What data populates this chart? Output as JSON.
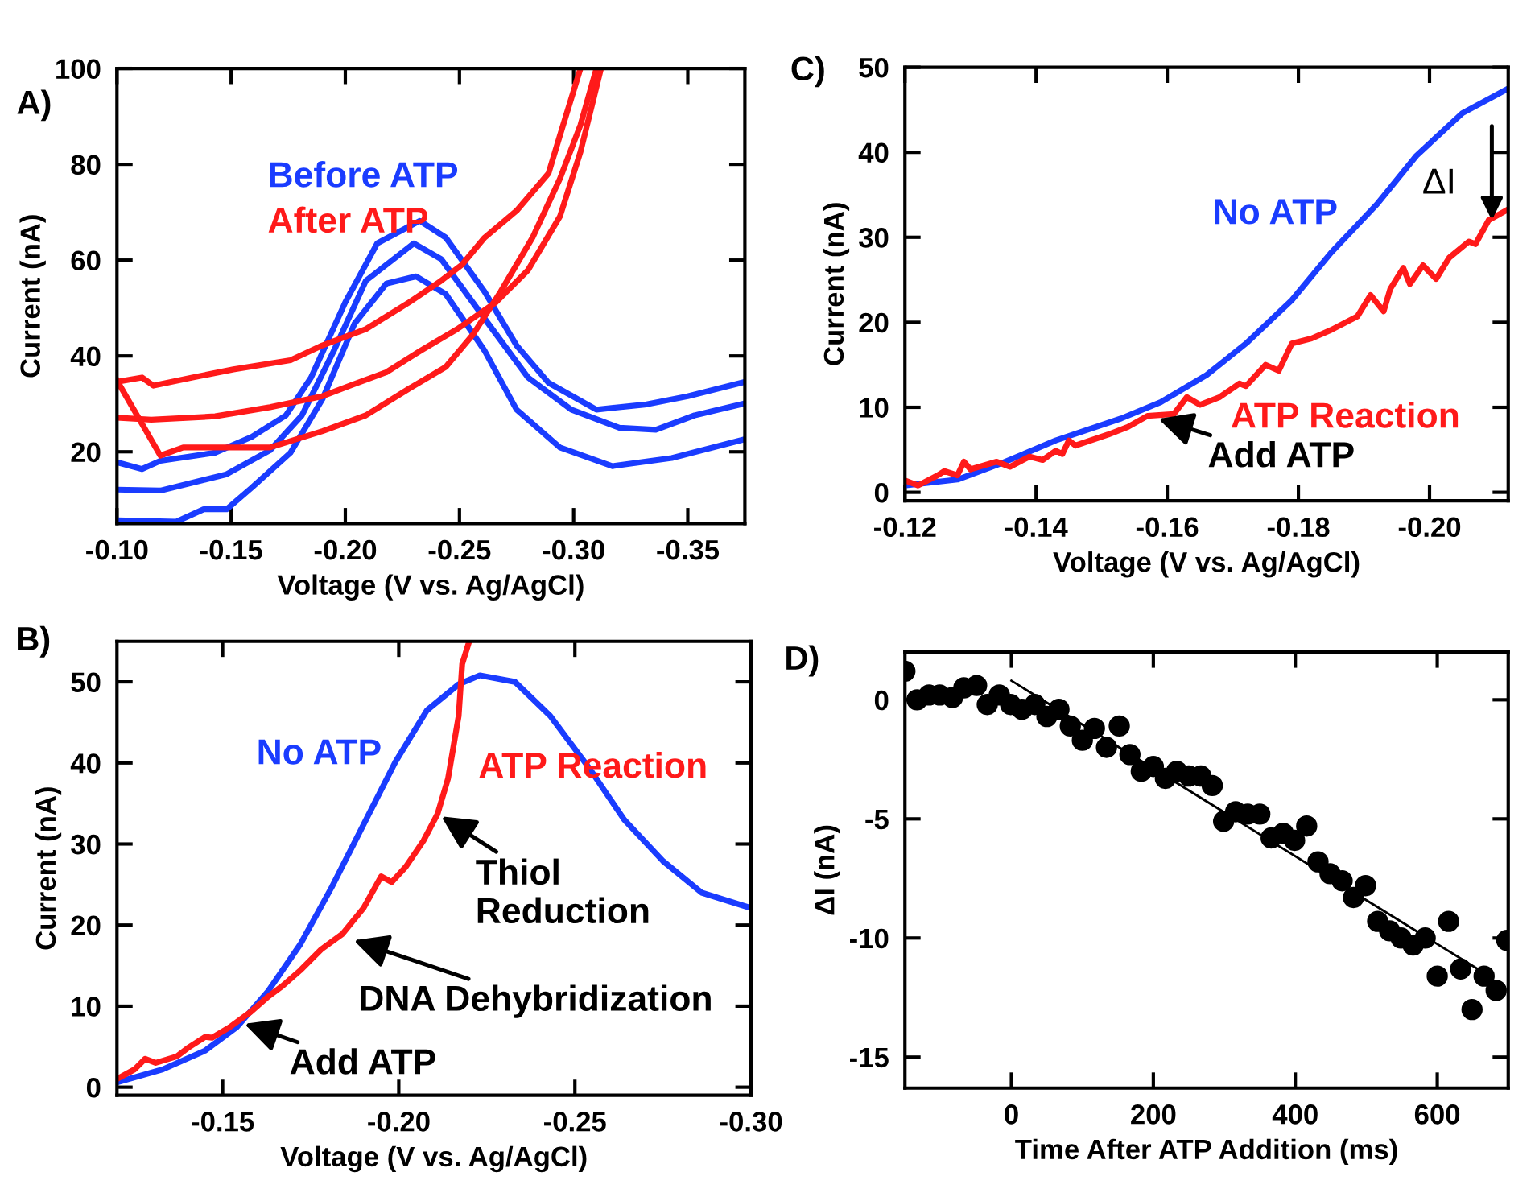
{
  "chart_data": [
    {
      "type": "line",
      "title": "A)",
      "xlabel": "Voltage (V vs. Ag/AgCl)",
      "ylabel": "Current (nA)",
      "xlim": [
        -0.1,
        -0.375
      ],
      "xticks": [
        {
          "value": -0.1,
          "label": "-0.10"
        },
        {
          "value": -0.15,
          "label": "-0.15"
        },
        {
          "value": -0.2,
          "label": "-0.20"
        },
        {
          "value": -0.25,
          "label": "-0.25"
        },
        {
          "value": -0.3,
          "label": "-0.30"
        },
        {
          "value": -0.35,
          "label": "-0.35"
        }
      ],
      "ylim": [
        5,
        100
      ],
      "yticks": [
        20,
        40,
        60,
        80,
        100
      ],
      "grid": false,
      "legend": false,
      "series": [
        {
          "name": "Before ATP",
          "color": "#1a3cff",
          "x": [
            -0.1,
            -0.111,
            -0.119,
            -0.143,
            -0.159,
            -0.174,
            -0.185,
            -0.2,
            -0.214,
            -0.2326,
            -0.244,
            -0.261,
            -0.275,
            -0.289,
            -0.31,
            -0.332,
            -0.35,
            -0.375
          ],
          "values": [
            17.8,
            16.4,
            18.1,
            19.8,
            23.1,
            27.6,
            35.5,
            51.2,
            63.5,
            68.2,
            64.7,
            53.4,
            42.2,
            34.4,
            28.8,
            29.9,
            31.6,
            34.6
          ]
        },
        {
          "color": "#1a3cff",
          "x": [
            -0.1,
            -0.119,
            -0.148,
            -0.167,
            -0.181,
            -0.195,
            -0.209,
            -0.23,
            -0.242,
            -0.261,
            -0.28,
            -0.299,
            -0.32,
            -0.336,
            -0.353,
            -0.375
          ],
          "values": [
            12.1,
            11.9,
            15.3,
            20.3,
            27.6,
            41.1,
            55.7,
            63.5,
            60.2,
            47.8,
            35.5,
            28.8,
            25.0,
            24.6,
            27.6,
            30.1
          ]
        },
        {
          "color": "#1a3cff",
          "x": [
            -0.1,
            -0.126,
            -0.138,
            -0.148,
            -0.159,
            -0.176,
            -0.19,
            -0.204,
            -0.218,
            -0.231,
            -0.244,
            -0.261,
            -0.275,
            -0.294,
            -0.317,
            -0.343,
            -0.375
          ],
          "values": [
            5.7,
            5.4,
            8.0,
            8.0,
            12.5,
            19.8,
            31.0,
            46.7,
            55.1,
            56.6,
            52.9,
            41.1,
            28.8,
            20.9,
            17.0,
            18.7,
            22.6
          ]
        },
        {
          "name": "After ATP",
          "color": "#ff1a1a",
          "x": [
            -0.1,
            -0.111,
            -0.116,
            -0.133,
            -0.151,
            -0.176,
            -0.19,
            -0.209,
            -0.228,
            -0.242,
            -0.251,
            -0.261,
            -0.275,
            -0.289,
            -0.294,
            -0.303
          ],
          "values": [
            34.6,
            35.5,
            33.8,
            35.5,
            37.2,
            39.1,
            42.2,
            45.6,
            51.2,
            55.7,
            59.0,
            64.7,
            70.3,
            78.1,
            86.0,
            100
          ]
        },
        {
          "color": "#ff1a1a",
          "x": [
            -0.1,
            -0.115,
            -0.143,
            -0.167,
            -0.19,
            -0.202,
            -0.218,
            -0.233,
            -0.249,
            -0.266,
            -0.28,
            -0.294,
            -0.303,
            -0.312
          ],
          "values": [
            27.1,
            26.7,
            27.4,
            29.3,
            31.6,
            33.8,
            36.6,
            41.1,
            45.6,
            51.2,
            57.9,
            69.1,
            82.6,
            100
          ]
        },
        {
          "color": "#ff1a1a",
          "x": [
            -0.1,
            -0.119,
            -0.129,
            -0.148,
            -0.167,
            -0.19,
            -0.209,
            -0.228,
            -0.244,
            -0.256,
            -0.268,
            -0.282,
            -0.294,
            -0.303,
            -0.31
          ],
          "values": [
            34.9,
            19.2,
            20.9,
            20.9,
            20.9,
            24.3,
            27.6,
            33.2,
            37.7,
            44.5,
            53.4,
            64.7,
            77.0,
            88.2,
            100
          ]
        }
      ]
    },
    {
      "type": "line",
      "title": "C)",
      "xlabel": "Voltage (V vs. Ag/AgCl)",
      "ylabel": "Current (nA)",
      "xlim": [
        -0.12,
        -0.212
      ],
      "xticks": [
        {
          "value": -0.12,
          "label": "-0.12"
        },
        {
          "value": -0.14,
          "label": "-0.14"
        },
        {
          "value": -0.16,
          "label": "-0.16"
        },
        {
          "value": -0.18,
          "label": "-0.18"
        },
        {
          "value": -0.2,
          "label": "-0.20"
        }
      ],
      "ylim": [
        -1,
        50
      ],
      "yticks": [
        0,
        10,
        20,
        30,
        40,
        50
      ],
      "grid": false,
      "legend": false,
      "series": [
        {
          "name": "No ATP",
          "color": "#1a3cff",
          "x": [
            -0.12,
            -0.128,
            -0.135,
            -0.143,
            -0.153,
            -0.159,
            -0.166,
            -0.172,
            -0.179,
            -0.185,
            -0.192,
            -0.198,
            -0.205,
            -0.212
          ],
          "values": [
            0.8,
            1.5,
            3.5,
            6.1,
            8.7,
            10.6,
            13.8,
            17.5,
            22.6,
            28.2,
            33.9,
            39.6,
            44.6,
            47.5
          ]
        },
        {
          "name": "ATP Reaction",
          "color": "#ff1a1a",
          "x": [
            -0.12,
            -0.122,
            -0.125,
            -0.126,
            -0.128,
            -0.129,
            -0.13,
            -0.134,
            -0.136,
            -0.139,
            -0.141,
            -0.143,
            -0.144,
            -0.145,
            -0.146,
            -0.151,
            -0.154,
            -0.157,
            -0.161,
            -0.163,
            -0.165,
            -0.168,
            -0.171,
            -0.172,
            -0.175,
            -0.177,
            -0.179,
            -0.182,
            -0.185,
            -0.189,
            -0.191,
            -0.193,
            -0.194,
            -0.196,
            -0.197,
            -0.199,
            -0.201,
            -0.203,
            -0.206,
            -0.207,
            -0.209,
            -0.212
          ],
          "values": [
            1.4,
            0.8,
            2.0,
            2.5,
            2.0,
            3.6,
            2.7,
            3.6,
            3.0,
            4.2,
            3.8,
            4.9,
            4.5,
            6.1,
            5.5,
            6.8,
            7.7,
            9.0,
            9.2,
            11.2,
            10.3,
            11.2,
            12.8,
            12.5,
            15.0,
            14.3,
            17.5,
            18.1,
            19.1,
            20.7,
            23.2,
            21.3,
            23.9,
            26.4,
            24.5,
            26.7,
            25.1,
            27.6,
            29.5,
            29.2,
            32.0,
            33.3
          ]
        }
      ],
      "annotations": [
        {
          "text": "Add ATP",
          "x": -0.158,
          "y": 8.8
        },
        {
          "text": "ΔI",
          "x": -0.2095,
          "y": 31.5
        }
      ]
    },
    {
      "type": "line",
      "title": "B)",
      "xlabel": "Voltage (V vs. Ag/AgCl)",
      "ylabel": "Current (nA)",
      "xlim": [
        -0.12,
        -0.3
      ],
      "xticks": [
        {
          "value": -0.15,
          "label": "-0.15"
        },
        {
          "value": -0.2,
          "label": "-0.20"
        },
        {
          "value": -0.25,
          "label": "-0.25"
        },
        {
          "value": -0.3,
          "label": "-0.30"
        }
      ],
      "ylim": [
        -1,
        55
      ],
      "yticks": [
        0,
        10,
        20,
        30,
        40,
        50
      ],
      "grid": false,
      "legend": false,
      "series": [
        {
          "name": "No ATP",
          "color": "#1a3cff",
          "x": [
            -0.12,
            -0.133,
            -0.145,
            -0.154,
            -0.163,
            -0.172,
            -0.181,
            -0.19,
            -0.199,
            -0.208,
            -0.217,
            -0.223,
            -0.233,
            -0.243,
            -0.254,
            -0.264,
            -0.275,
            -0.286,
            -0.3
          ],
          "values": [
            0.6,
            2.2,
            4.5,
            7.4,
            11.9,
            17.6,
            24.7,
            32.4,
            40.1,
            46.5,
            49.7,
            50.8,
            50.0,
            45.8,
            39.4,
            33.0,
            27.9,
            24.0,
            22.1
          ]
        },
        {
          "name": "ATP Reaction",
          "color": "#ff1a1a",
          "x": [
            -0.12,
            -0.125,
            -0.128,
            -0.131,
            -0.137,
            -0.14,
            -0.145,
            -0.147,
            -0.152,
            -0.158,
            -0.163,
            -0.167,
            -0.172,
            -0.178,
            -0.184,
            -0.19,
            -0.195,
            -0.198,
            -0.202,
            -0.207,
            -0.211,
            -0.214,
            -0.217,
            -0.218,
            -0.22
          ],
          "values": [
            1.0,
            2.2,
            3.5,
            3.0,
            3.8,
            4.8,
            6.2,
            6.1,
            7.4,
            9.3,
            11.2,
            12.5,
            14.4,
            17.0,
            18.9,
            22.1,
            26.0,
            25.3,
            27.2,
            30.4,
            33.7,
            38.1,
            45.8,
            52.2,
            55.0
          ]
        }
      ],
      "annotations": [
        {
          "text": "Thiol\nReduction",
          "x": -0.211,
          "y": 33.7
        },
        {
          "text": "DNA Dehybridization",
          "x": -0.186,
          "y": 18.3
        },
        {
          "text": "Add ATP",
          "x": -0.155,
          "y": 8.0
        }
      ]
    },
    {
      "type": "scatter",
      "title": "D)",
      "xlabel": "Time After ATP Addition (ms)",
      "ylabel": "ΔI (nA)",
      "xlim": [
        -150,
        700
      ],
      "xticks": [
        0,
        200,
        400,
        600
      ],
      "ylim": [
        -16.3,
        2
      ],
      "yticks": [
        {
          "value": 0,
          "label": "0"
        },
        {
          "value": -5,
          "label": "-5"
        },
        {
          "value": -10,
          "label": "-10"
        },
        {
          "value": -15,
          "label": "-15"
        }
      ],
      "grid": false,
      "legend": false,
      "marker": "circle",
      "series": [
        {
          "color": "#000000",
          "x": [
            -150,
            -133,
            -116,
            -101,
            -83,
            -67,
            -49,
            -34,
            -17,
            -1,
            15,
            33,
            50,
            67,
            83,
            100,
            117,
            134,
            152,
            167,
            183,
            200,
            217,
            233,
            250,
            267,
            283,
            299,
            316,
            333,
            350,
            366,
            383,
            399,
            416,
            432,
            449,
            466,
            482,
            499,
            516,
            533,
            549,
            566,
            583,
            600,
            616,
            633,
            649,
            666,
            683,
            698
          ],
          "values": [
            1.2,
            0,
            0.2,
            0.2,
            0.1,
            0.5,
            0.6,
            -0.2,
            0.2,
            -0.2,
            -0.4,
            -0.2,
            -0.7,
            -0.4,
            -1.1,
            -1.7,
            -1.2,
            -2.0,
            -1.1,
            -2.3,
            -3.0,
            -2.8,
            -3.3,
            -3.0,
            -3.2,
            -3.2,
            -3.6,
            -5.1,
            -4.7,
            -4.8,
            -4.8,
            -5.8,
            -5.6,
            -5.9,
            -5.3,
            -6.8,
            -7.3,
            -7.6,
            -8.3,
            -7.8,
            -9.3,
            -9.7,
            -10.0,
            -10.3,
            -10.0,
            -11.6,
            -9.3,
            -11.3,
            -13.0,
            -11.6,
            -12.2,
            -10.1
          ]
        },
        {
          "type": "line",
          "marker": "none",
          "color": "#000000",
          "x": [
            0,
            657
          ],
          "values": [
            0.8,
            -11.3
          ]
        }
      ]
    }
  ]
}
